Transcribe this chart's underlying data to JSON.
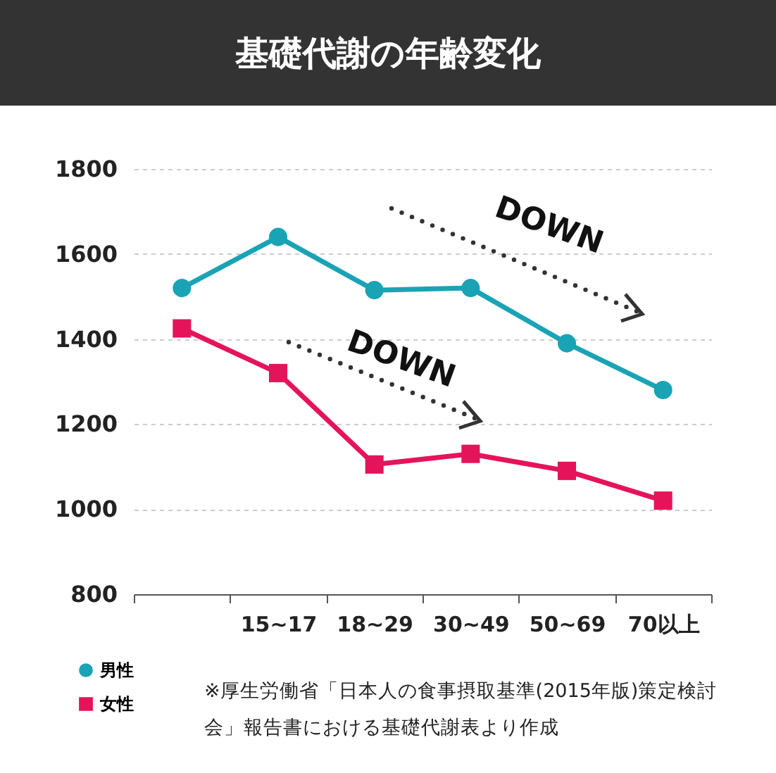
{
  "chart_data": {
    "type": "line",
    "title": "基礎代謝の年齢変化",
    "categories": [
      null,
      "15~17",
      "18~29",
      "30~49",
      "50~69",
      "70以上"
    ],
    "series": [
      {
        "name": "男性",
        "color": "#1aa3b5",
        "marker": "circle",
        "values": [
          1520,
          1640,
          1515,
          1520,
          1390,
          1280
        ]
      },
      {
        "name": "女性",
        "color": "#e5145a",
        "marker": "square",
        "values": [
          1425,
          1320,
          1105,
          1130,
          1090,
          1020
        ]
      }
    ],
    "ylim": [
      800,
      1800
    ],
    "yticks": [
      800,
      1000,
      1200,
      1400,
      1600,
      1800
    ],
    "grid": "y",
    "legend": "bottom left",
    "annotations": [
      "DOWN",
      "DOWN",
      "※厚生労働省「日本人の食事摂取基準(2015年版)策定検討会」報告書における基礎代謝表より作成"
    ]
  }
}
